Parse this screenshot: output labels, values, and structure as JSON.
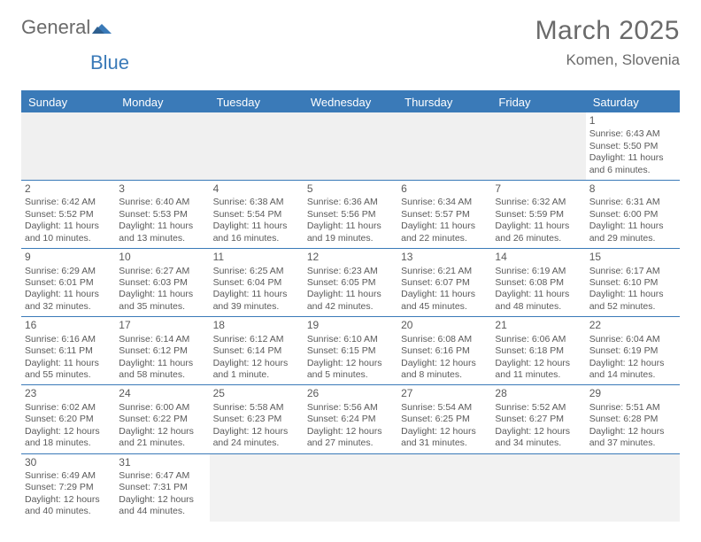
{
  "logo": {
    "word1": "General",
    "word2": "Blue"
  },
  "title": {
    "month": "March 2025",
    "location": "Komen, Slovenia"
  },
  "weekdays": [
    "Sunday",
    "Monday",
    "Tuesday",
    "Wednesday",
    "Thursday",
    "Friday",
    "Saturday"
  ],
  "colors": {
    "accent": "#3a7ab8",
    "text": "#5a5a5a",
    "blank_bg": "#f0f0f0",
    "bg": "#ffffff"
  },
  "weeks": [
    [
      null,
      null,
      null,
      null,
      null,
      null,
      {
        "n": "1",
        "sunrise": "Sunrise: 6:43 AM",
        "sunset": "Sunset: 5:50 PM",
        "daylight": "Daylight: 11 hours and 6 minutes."
      }
    ],
    [
      {
        "n": "2",
        "sunrise": "Sunrise: 6:42 AM",
        "sunset": "Sunset: 5:52 PM",
        "daylight": "Daylight: 11 hours and 10 minutes."
      },
      {
        "n": "3",
        "sunrise": "Sunrise: 6:40 AM",
        "sunset": "Sunset: 5:53 PM",
        "daylight": "Daylight: 11 hours and 13 minutes."
      },
      {
        "n": "4",
        "sunrise": "Sunrise: 6:38 AM",
        "sunset": "Sunset: 5:54 PM",
        "daylight": "Daylight: 11 hours and 16 minutes."
      },
      {
        "n": "5",
        "sunrise": "Sunrise: 6:36 AM",
        "sunset": "Sunset: 5:56 PM",
        "daylight": "Daylight: 11 hours and 19 minutes."
      },
      {
        "n": "6",
        "sunrise": "Sunrise: 6:34 AM",
        "sunset": "Sunset: 5:57 PM",
        "daylight": "Daylight: 11 hours and 22 minutes."
      },
      {
        "n": "7",
        "sunrise": "Sunrise: 6:32 AM",
        "sunset": "Sunset: 5:59 PM",
        "daylight": "Daylight: 11 hours and 26 minutes."
      },
      {
        "n": "8",
        "sunrise": "Sunrise: 6:31 AM",
        "sunset": "Sunset: 6:00 PM",
        "daylight": "Daylight: 11 hours and 29 minutes."
      }
    ],
    [
      {
        "n": "9",
        "sunrise": "Sunrise: 6:29 AM",
        "sunset": "Sunset: 6:01 PM",
        "daylight": "Daylight: 11 hours and 32 minutes."
      },
      {
        "n": "10",
        "sunrise": "Sunrise: 6:27 AM",
        "sunset": "Sunset: 6:03 PM",
        "daylight": "Daylight: 11 hours and 35 minutes."
      },
      {
        "n": "11",
        "sunrise": "Sunrise: 6:25 AM",
        "sunset": "Sunset: 6:04 PM",
        "daylight": "Daylight: 11 hours and 39 minutes."
      },
      {
        "n": "12",
        "sunrise": "Sunrise: 6:23 AM",
        "sunset": "Sunset: 6:05 PM",
        "daylight": "Daylight: 11 hours and 42 minutes."
      },
      {
        "n": "13",
        "sunrise": "Sunrise: 6:21 AM",
        "sunset": "Sunset: 6:07 PM",
        "daylight": "Daylight: 11 hours and 45 minutes."
      },
      {
        "n": "14",
        "sunrise": "Sunrise: 6:19 AM",
        "sunset": "Sunset: 6:08 PM",
        "daylight": "Daylight: 11 hours and 48 minutes."
      },
      {
        "n": "15",
        "sunrise": "Sunrise: 6:17 AM",
        "sunset": "Sunset: 6:10 PM",
        "daylight": "Daylight: 11 hours and 52 minutes."
      }
    ],
    [
      {
        "n": "16",
        "sunrise": "Sunrise: 6:16 AM",
        "sunset": "Sunset: 6:11 PM",
        "daylight": "Daylight: 11 hours and 55 minutes."
      },
      {
        "n": "17",
        "sunrise": "Sunrise: 6:14 AM",
        "sunset": "Sunset: 6:12 PM",
        "daylight": "Daylight: 11 hours and 58 minutes."
      },
      {
        "n": "18",
        "sunrise": "Sunrise: 6:12 AM",
        "sunset": "Sunset: 6:14 PM",
        "daylight": "Daylight: 12 hours and 1 minute."
      },
      {
        "n": "19",
        "sunrise": "Sunrise: 6:10 AM",
        "sunset": "Sunset: 6:15 PM",
        "daylight": "Daylight: 12 hours and 5 minutes."
      },
      {
        "n": "20",
        "sunrise": "Sunrise: 6:08 AM",
        "sunset": "Sunset: 6:16 PM",
        "daylight": "Daylight: 12 hours and 8 minutes."
      },
      {
        "n": "21",
        "sunrise": "Sunrise: 6:06 AM",
        "sunset": "Sunset: 6:18 PM",
        "daylight": "Daylight: 12 hours and 11 minutes."
      },
      {
        "n": "22",
        "sunrise": "Sunrise: 6:04 AM",
        "sunset": "Sunset: 6:19 PM",
        "daylight": "Daylight: 12 hours and 14 minutes."
      }
    ],
    [
      {
        "n": "23",
        "sunrise": "Sunrise: 6:02 AM",
        "sunset": "Sunset: 6:20 PM",
        "daylight": "Daylight: 12 hours and 18 minutes."
      },
      {
        "n": "24",
        "sunrise": "Sunrise: 6:00 AM",
        "sunset": "Sunset: 6:22 PM",
        "daylight": "Daylight: 12 hours and 21 minutes."
      },
      {
        "n": "25",
        "sunrise": "Sunrise: 5:58 AM",
        "sunset": "Sunset: 6:23 PM",
        "daylight": "Daylight: 12 hours and 24 minutes."
      },
      {
        "n": "26",
        "sunrise": "Sunrise: 5:56 AM",
        "sunset": "Sunset: 6:24 PM",
        "daylight": "Daylight: 12 hours and 27 minutes."
      },
      {
        "n": "27",
        "sunrise": "Sunrise: 5:54 AM",
        "sunset": "Sunset: 6:25 PM",
        "daylight": "Daylight: 12 hours and 31 minutes."
      },
      {
        "n": "28",
        "sunrise": "Sunrise: 5:52 AM",
        "sunset": "Sunset: 6:27 PM",
        "daylight": "Daylight: 12 hours and 34 minutes."
      },
      {
        "n": "29",
        "sunrise": "Sunrise: 5:51 AM",
        "sunset": "Sunset: 6:28 PM",
        "daylight": "Daylight: 12 hours and 37 minutes."
      }
    ],
    [
      {
        "n": "30",
        "sunrise": "Sunrise: 6:49 AM",
        "sunset": "Sunset: 7:29 PM",
        "daylight": "Daylight: 12 hours and 40 minutes."
      },
      {
        "n": "31",
        "sunrise": "Sunrise: 6:47 AM",
        "sunset": "Sunset: 7:31 PM",
        "daylight": "Daylight: 12 hours and 44 minutes."
      },
      null,
      null,
      null,
      null,
      null
    ]
  ]
}
